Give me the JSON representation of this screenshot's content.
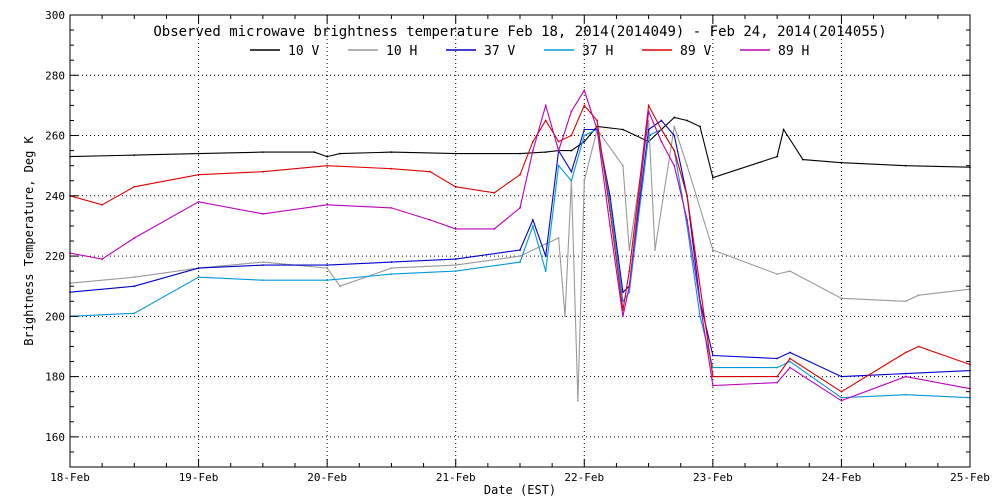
{
  "chart_data": {
    "type": "line",
    "title": "Observed microwave brightness temperature Feb 18, 2014(2014049) - Feb 24, 2014(2014055)",
    "xlabel": "Date (EST)",
    "ylabel": "Brightness Temperature, Deg K",
    "xlim": [
      0,
      7
    ],
    "ylim": [
      150,
      300
    ],
    "x_tick_labels": [
      "18-Feb",
      "19-Feb",
      "20-Feb",
      "21-Feb",
      "22-Feb",
      "23-Feb",
      "24-Feb",
      "25-Feb"
    ],
    "y_ticks": [
      160,
      180,
      200,
      220,
      240,
      260,
      280,
      300
    ],
    "grid": true,
    "legend_position": "top",
    "series": [
      {
        "name": "10 V",
        "color": "#000000",
        "x": [
          0,
          0.5,
          1,
          1.5,
          1.9,
          2,
          2.1,
          2.5,
          3,
          3.5,
          3.7,
          3.8,
          3.9,
          4,
          4.1,
          4.3,
          4.5,
          4.6,
          4.7,
          4.8,
          4.9,
          5,
          5.5,
          5.55,
          5.7,
          6,
          6.5,
          7
        ],
        "y": [
          253,
          253.5,
          254,
          254.5,
          254.5,
          253,
          254,
          254.5,
          254,
          254,
          254.5,
          255,
          255,
          258,
          263,
          262,
          258,
          262,
          266,
          265,
          263,
          246,
          253,
          262,
          252,
          251,
          250,
          249.5
        ]
      },
      {
        "name": "10 H",
        "color": "#999999",
        "x": [
          0,
          0.5,
          1,
          1.5,
          2,
          2.1,
          2.5,
          3,
          3.5,
          3.7,
          3.8,
          3.85,
          3.9,
          3.95,
          4,
          4.1,
          4.3,
          4.35,
          4.5,
          4.55,
          4.7,
          4.8,
          5,
          5.5,
          5.6,
          6,
          6.5,
          6.6,
          7
        ],
        "y": [
          211,
          213,
          216,
          218,
          216,
          210,
          216,
          217,
          220,
          224,
          226,
          200,
          245,
          172,
          245,
          262,
          250,
          222,
          265,
          222,
          263,
          250,
          222,
          214,
          215,
          206,
          205,
          207,
          209
        ]
      },
      {
        "name": "37 V",
        "color": "#0000cc",
        "x": [
          0,
          0.5,
          1,
          1.5,
          2,
          2.5,
          3,
          3.5,
          3.6,
          3.7,
          3.8,
          3.9,
          4,
          4.1,
          4.2,
          4.3,
          4.35,
          4.5,
          4.6,
          4.7,
          4.8,
          4.9,
          5,
          5.5,
          5.6,
          6,
          6.5,
          7
        ],
        "y": [
          208,
          210,
          216,
          217,
          217,
          218,
          219,
          222,
          232,
          220,
          255,
          248,
          262,
          262,
          240,
          208,
          210,
          262,
          265,
          260,
          240,
          205,
          187,
          186,
          188,
          180,
          181,
          182
        ]
      },
      {
        "name": "37 H",
        "color": "#0099dd",
        "x": [
          0,
          0.5,
          1,
          1.5,
          2,
          2.5,
          3,
          3.5,
          3.6,
          3.7,
          3.8,
          3.9,
          4,
          4.1,
          4.2,
          4.3,
          4.35,
          4.5,
          4.6,
          4.7,
          4.8,
          4.9,
          5,
          5.5,
          5.6,
          6,
          6.5,
          7
        ],
        "y": [
          200,
          201,
          213,
          212,
          212,
          214,
          215,
          218,
          230,
          215,
          250,
          245,
          260,
          262,
          238,
          205,
          208,
          260,
          262,
          255,
          230,
          200,
          183,
          183,
          185,
          173,
          174,
          173
        ]
      },
      {
        "name": "89 V",
        "color": "#dd0000",
        "x": [
          0,
          0.25,
          0.5,
          1,
          1.5,
          2,
          2.5,
          2.8,
          3,
          3.3,
          3.5,
          3.6,
          3.7,
          3.8,
          3.9,
          4,
          4.1,
          4.2,
          4.3,
          4.35,
          4.5,
          4.6,
          4.7,
          4.8,
          5,
          5.5,
          5.6,
          6,
          6.5,
          6.6,
          7
        ],
        "y": [
          240,
          237,
          243,
          247,
          248,
          250,
          249,
          248,
          243,
          241,
          247,
          258,
          265,
          258,
          260,
          270,
          265,
          235,
          202,
          215,
          270,
          262,
          255,
          240,
          180,
          180,
          186,
          175,
          188,
          190,
          184
        ]
      },
      {
        "name": "89 H",
        "color": "#bb00bb",
        "x": [
          0,
          0.25,
          0.5,
          1,
          1.5,
          2,
          2.5,
          2.8,
          3,
          3.3,
          3.5,
          3.6,
          3.7,
          3.8,
          3.9,
          4,
          4.1,
          4.2,
          4.3,
          4.35,
          4.5,
          4.6,
          4.7,
          4.8,
          5,
          5.5,
          5.6,
          6,
          6.5,
          7
        ],
        "y": [
          221,
          219,
          226,
          238,
          234,
          237,
          236,
          232,
          229,
          229,
          236,
          255,
          270,
          255,
          268,
          275,
          262,
          230,
          200,
          210,
          268,
          258,
          250,
          232,
          177,
          178,
          183,
          172,
          180,
          176
        ]
      }
    ]
  }
}
